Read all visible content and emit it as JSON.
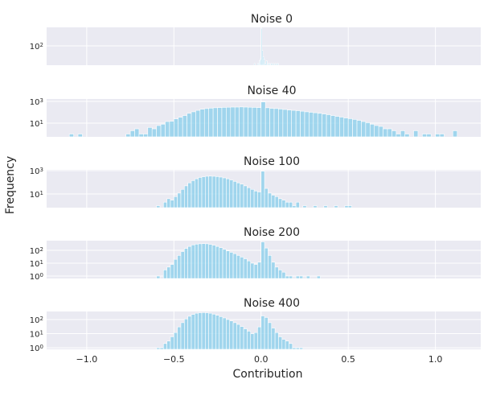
{
  "figure": {
    "xlabel": "Contribution",
    "ylabel": "Frequency",
    "xlim": [
      -1.23,
      1.26
    ],
    "xticks": [
      -1.0,
      -0.5,
      0.0,
      0.5,
      1.0
    ],
    "xtick_labels": [
      "−1.0",
      "−0.5",
      "0.0",
      "0.5",
      "1.0"
    ],
    "bar_color": "#87ceeb",
    "axes_background": "#eaeaf2",
    "grid_color": "#ffffff",
    "grid": true
  },
  "chart_data": [
    {
      "type": "bar",
      "title": "Noise 0",
      "yscale": "log",
      "ylim": [
        0.63,
        12600
      ],
      "ytick_base": "10",
      "ytick_exponents": [
        "2"
      ],
      "bin_start": -0.04,
      "bin_width": 0.005,
      "counts": [
        1,
        0,
        0,
        0,
        1,
        0,
        2,
        3,
        10000,
        30,
        6,
        3,
        1,
        1,
        2,
        0,
        1,
        1,
        0,
        1,
        1,
        0,
        1,
        0,
        1,
        0,
        1,
        1
      ]
    },
    {
      "type": "bar",
      "title": "Noise 40",
      "yscale": "log",
      "ylim": [
        0.55,
        1660
      ],
      "ytick_base": "10",
      "ytick_exponents": [
        "1",
        "3"
      ],
      "bin_start": -1.1,
      "bin_width": 0.025,
      "counts": [
        1,
        0,
        1,
        0,
        0,
        0,
        0,
        0,
        0,
        0,
        0,
        0,
        0,
        1,
        2,
        3,
        1,
        1,
        4,
        3,
        6,
        8,
        14,
        15,
        25,
        35,
        50,
        80,
        110,
        150,
        190,
        220,
        240,
        260,
        270,
        280,
        290,
        300,
        300,
        310,
        300,
        290,
        280,
        270,
        900,
        260,
        230,
        220,
        200,
        180,
        160,
        150,
        140,
        125,
        110,
        100,
        90,
        80,
        70,
        60,
        50,
        42,
        36,
        30,
        26,
        22,
        18,
        14,
        11,
        8,
        6,
        5,
        3,
        3,
        2,
        1,
        2,
        1,
        0,
        2,
        0,
        1,
        1,
        0,
        1,
        1,
        0,
        0,
        2
      ]
    },
    {
      "type": "bar",
      "title": "Noise 100",
      "yscale": "log",
      "ylim": [
        0.68,
        1170
      ],
      "ytick_base": "10",
      "ytick_exponents": [
        "1",
        "3"
      ],
      "bin_start": -0.6,
      "bin_width": 0.02,
      "counts": [
        1,
        0,
        2,
        4,
        3,
        6,
        12,
        25,
        50,
        90,
        140,
        200,
        260,
        300,
        330,
        340,
        330,
        310,
        280,
        240,
        200,
        160,
        120,
        90,
        70,
        50,
        35,
        25,
        18,
        15,
        900,
        30,
        12,
        8,
        6,
        4,
        3,
        2,
        2,
        1,
        2,
        0,
        1,
        0,
        0,
        1,
        0,
        0,
        1,
        0,
        0,
        1,
        0,
        0,
        1,
        1
      ]
    },
    {
      "type": "bar",
      "title": "Noise 200",
      "yscale": "log",
      "ylim": [
        0.65,
        560
      ],
      "ytick_base": "10",
      "ytick_exponents": [
        "0",
        "1",
        "2"
      ],
      "bin_start": -0.6,
      "bin_width": 0.02,
      "counts": [
        1,
        0,
        3,
        5,
        8,
        20,
        40,
        80,
        140,
        200,
        260,
        300,
        320,
        330,
        320,
        290,
        250,
        200,
        160,
        120,
        90,
        70,
        55,
        40,
        30,
        22,
        15,
        10,
        8,
        12,
        450,
        150,
        40,
        12,
        5,
        3,
        2,
        1,
        1,
        0,
        1,
        1,
        0,
        1,
        0,
        0,
        1
      ]
    },
    {
      "type": "bar",
      "title": "Noise 400",
      "yscale": "log",
      "ylim": [
        0.78,
        370
      ],
      "ytick_base": "10",
      "ytick_exponents": [
        "0",
        "1",
        "2"
      ],
      "bin_start": -0.6,
      "bin_width": 0.02,
      "counts": [
        1,
        1,
        2,
        3,
        6,
        12,
        30,
        60,
        110,
        170,
        230,
        280,
        300,
        310,
        300,
        280,
        240,
        200,
        160,
        130,
        100,
        80,
        60,
        45,
        32,
        22,
        15,
        10,
        12,
        30,
        180,
        140,
        60,
        25,
        12,
        6,
        4,
        3,
        2,
        1,
        1,
        1
      ]
    }
  ]
}
